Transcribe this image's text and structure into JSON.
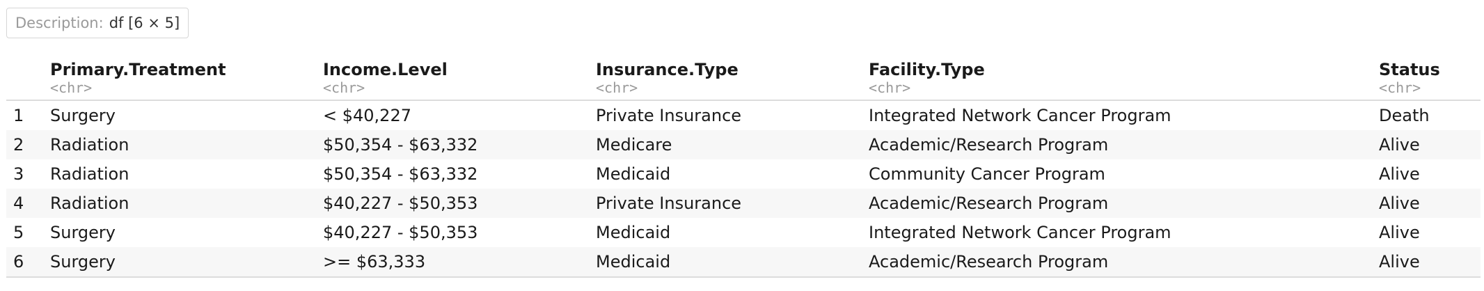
{
  "description": {
    "label": "Description:",
    "value": "df [6 × 5]"
  },
  "table": {
    "columns": [
      {
        "name": "Primary.Treatment",
        "type": "<chr>"
      },
      {
        "name": "Income.Level",
        "type": "<chr>"
      },
      {
        "name": "Insurance.Type",
        "type": "<chr>"
      },
      {
        "name": "Facility.Type",
        "type": "<chr>"
      },
      {
        "name": "Status",
        "type": "<chr>"
      }
    ],
    "rows": [
      {
        "index": "1",
        "cells": [
          "Surgery",
          "< $40,227",
          "Private Insurance",
          "Integrated Network Cancer Program",
          "Death"
        ]
      },
      {
        "index": "2",
        "cells": [
          "Radiation",
          "$50,354 - $63,332",
          "Medicare",
          "Academic/Research Program",
          "Alive"
        ]
      },
      {
        "index": "3",
        "cells": [
          "Radiation",
          "$50,354 - $63,332",
          "Medicaid",
          "Community Cancer Program",
          "Alive"
        ]
      },
      {
        "index": "4",
        "cells": [
          "Radiation",
          "$40,227 - $50,353",
          "Private Insurance",
          "Academic/Research Program",
          "Alive"
        ]
      },
      {
        "index": "5",
        "cells": [
          "Surgery",
          "$40,227 - $50,353",
          "Medicaid",
          "Integrated Network Cancer Program",
          "Alive"
        ]
      },
      {
        "index": "6",
        "cells": [
          "Surgery",
          ">= $63,333",
          "Medicaid",
          "Academic/Research Program",
          "Alive"
        ]
      }
    ]
  }
}
